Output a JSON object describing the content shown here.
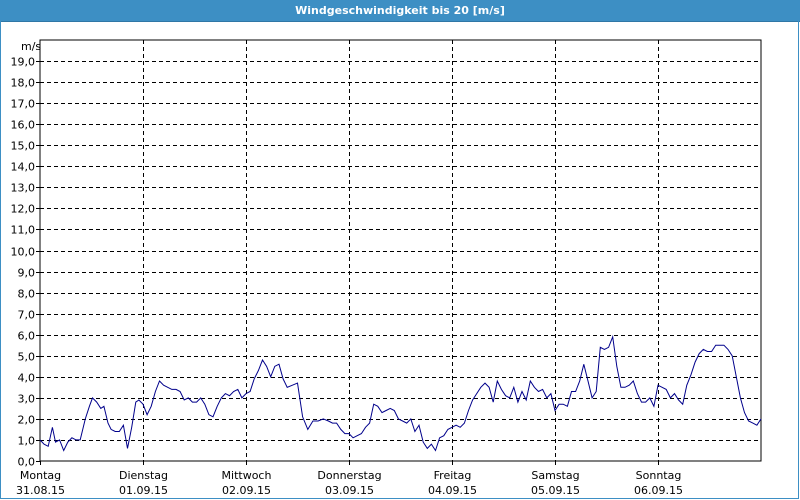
{
  "chart_data": {
    "type": "line",
    "title": "Windgeschwindigkeit bis 20 [m/s]",
    "ylabel": "m/s",
    "ylim": [
      0,
      20
    ],
    "xlim": [
      0,
      7
    ],
    "grid": true,
    "y_ticks": [
      "0,0",
      "1,0",
      "2,0",
      "3,0",
      "4,0",
      "5,0",
      "6,0",
      "7,0",
      "8,0",
      "9,0",
      "10,0",
      "11,0",
      "12,0",
      "13,0",
      "14,0",
      "15,0",
      "16,0",
      "17,0",
      "18,0",
      "19,0"
    ],
    "x_days": [
      {
        "day": "Montag",
        "date": "31.08.15"
      },
      {
        "day": "Dienstag",
        "date": "01.09.15"
      },
      {
        "day": "Mittwoch",
        "date": "02.09.15"
      },
      {
        "day": "Donnerstag",
        "date": "03.09.15"
      },
      {
        "day": "Freitag",
        "date": "04.09.15"
      },
      {
        "day": "Samstag",
        "date": "05.09.15"
      },
      {
        "day": "Sonntag",
        "date": "06.09.15"
      }
    ],
    "line_color": "#00008b",
    "series": [
      {
        "x": [
          0.0,
          0.04,
          0.08,
          0.12,
          0.15,
          0.19,
          0.23,
          0.27,
          0.31,
          0.35,
          0.39,
          0.44,
          0.48,
          0.51,
          0.55,
          0.59,
          0.62,
          0.66,
          0.69,
          0.73,
          0.77,
          0.81,
          0.85,
          0.89,
          0.93,
          0.96,
          1.0,
          1.04,
          1.08,
          1.12,
          1.16,
          1.2,
          1.24,
          1.28,
          1.32,
          1.36,
          1.4,
          1.44,
          1.48,
          1.52,
          1.56,
          1.6,
          1.64,
          1.68,
          1.72,
          1.76,
          1.8,
          1.84,
          1.88,
          1.92,
          1.96,
          2.0,
          2.04,
          2.08,
          2.12,
          2.16,
          2.2,
          2.24,
          2.28,
          2.32,
          2.36,
          2.4,
          2.45,
          2.5,
          2.55,
          2.6,
          2.65,
          2.7,
          2.75,
          2.8,
          2.84,
          2.88,
          2.92,
          2.96,
          3.0,
          3.04,
          3.08,
          3.12,
          3.16,
          3.2,
          3.24,
          3.28,
          3.32,
          3.36,
          3.4,
          3.44,
          3.48,
          3.52,
          3.56,
          3.6,
          3.64,
          3.68,
          3.72,
          3.76,
          3.8,
          3.84,
          3.88,
          3.92,
          3.96,
          4.0,
          4.04,
          4.08,
          4.12,
          4.16,
          4.2,
          4.24,
          4.28,
          4.32,
          4.36,
          4.4,
          4.44,
          4.48,
          4.52,
          4.56,
          4.6,
          4.64,
          4.68,
          4.72,
          4.76,
          4.8,
          4.84,
          4.88,
          4.92,
          4.96,
          5.0,
          5.04,
          5.08,
          5.12,
          5.16,
          5.2,
          5.24,
          5.28,
          5.32,
          5.36,
          5.4,
          5.44,
          5.48,
          5.52,
          5.56,
          5.6,
          5.64,
          5.68,
          5.72,
          5.76,
          5.8,
          5.84,
          5.88,
          5.92,
          5.96,
          6.0,
          6.04,
          6.08,
          6.12,
          6.16,
          6.2,
          6.24,
          6.28,
          6.32,
          6.36,
          6.4,
          6.44,
          6.48,
          6.52,
          6.56,
          6.6,
          6.64,
          6.68,
          6.72,
          6.76,
          6.8,
          6.84,
          6.88,
          6.92,
          6.96,
          7.0
        ],
        "y": [
          1.0,
          0.8,
          0.7,
          1.6,
          0.9,
          1.0,
          0.5,
          0.9,
          1.1,
          1.0,
          1.0,
          2.0,
          2.6,
          3.0,
          2.8,
          2.5,
          2.6,
          1.8,
          1.5,
          1.4,
          1.4,
          1.7,
          0.6,
          1.6,
          2.8,
          2.9,
          2.7,
          2.2,
          2.6,
          3.3,
          3.8,
          3.6,
          3.5,
          3.4,
          3.4,
          3.3,
          2.9,
          3.0,
          2.8,
          2.8,
          3.0,
          2.7,
          2.2,
          2.1,
          2.6,
          3.0,
          3.2,
          3.1,
          3.3,
          3.4,
          3.0,
          3.2,
          3.3,
          3.9,
          4.3,
          4.8,
          4.5,
          4.0,
          4.5,
          4.6,
          3.9,
          3.5,
          3.6,
          3.7,
          2.1,
          1.5,
          1.9,
          1.9,
          2.0,
          1.9,
          1.8,
          1.8,
          1.5,
          1.3,
          1.3,
          1.1,
          1.2,
          1.3,
          1.6,
          1.8,
          2.7,
          2.6,
          2.3,
          2.4,
          2.5,
          2.4,
          2.0,
          1.9,
          1.8,
          2.0,
          1.4,
          1.7,
          0.9,
          0.6,
          0.8,
          0.5,
          1.1,
          1.2,
          1.5,
          1.6,
          1.7,
          1.6,
          1.8,
          2.4,
          2.9,
          3.2,
          3.5,
          3.7,
          3.5,
          2.8,
          3.8,
          3.4,
          3.1,
          3.0,
          3.5,
          2.8,
          3.3,
          2.9,
          3.8,
          3.5,
          3.3,
          3.4,
          3.0,
          3.2,
          2.4,
          2.7,
          2.7,
          2.6,
          3.3,
          3.3,
          3.8,
          4.6,
          3.8,
          3.0,
          3.3,
          5.4,
          5.3,
          5.4,
          5.9,
          4.5,
          3.5,
          3.5,
          3.6,
          3.8,
          3.2,
          2.8,
          2.8,
          3.0,
          2.6,
          3.6,
          3.5,
          3.4,
          3.0,
          3.2,
          2.9,
          2.7,
          3.6,
          4.1,
          4.7,
          5.1,
          5.3,
          5.2,
          5.2,
          5.5,
          5.5,
          5.5,
          5.3,
          5.0,
          4.0,
          3.0,
          2.3,
          1.9,
          1.8,
          1.7,
          2.0
        ]
      }
    ]
  }
}
